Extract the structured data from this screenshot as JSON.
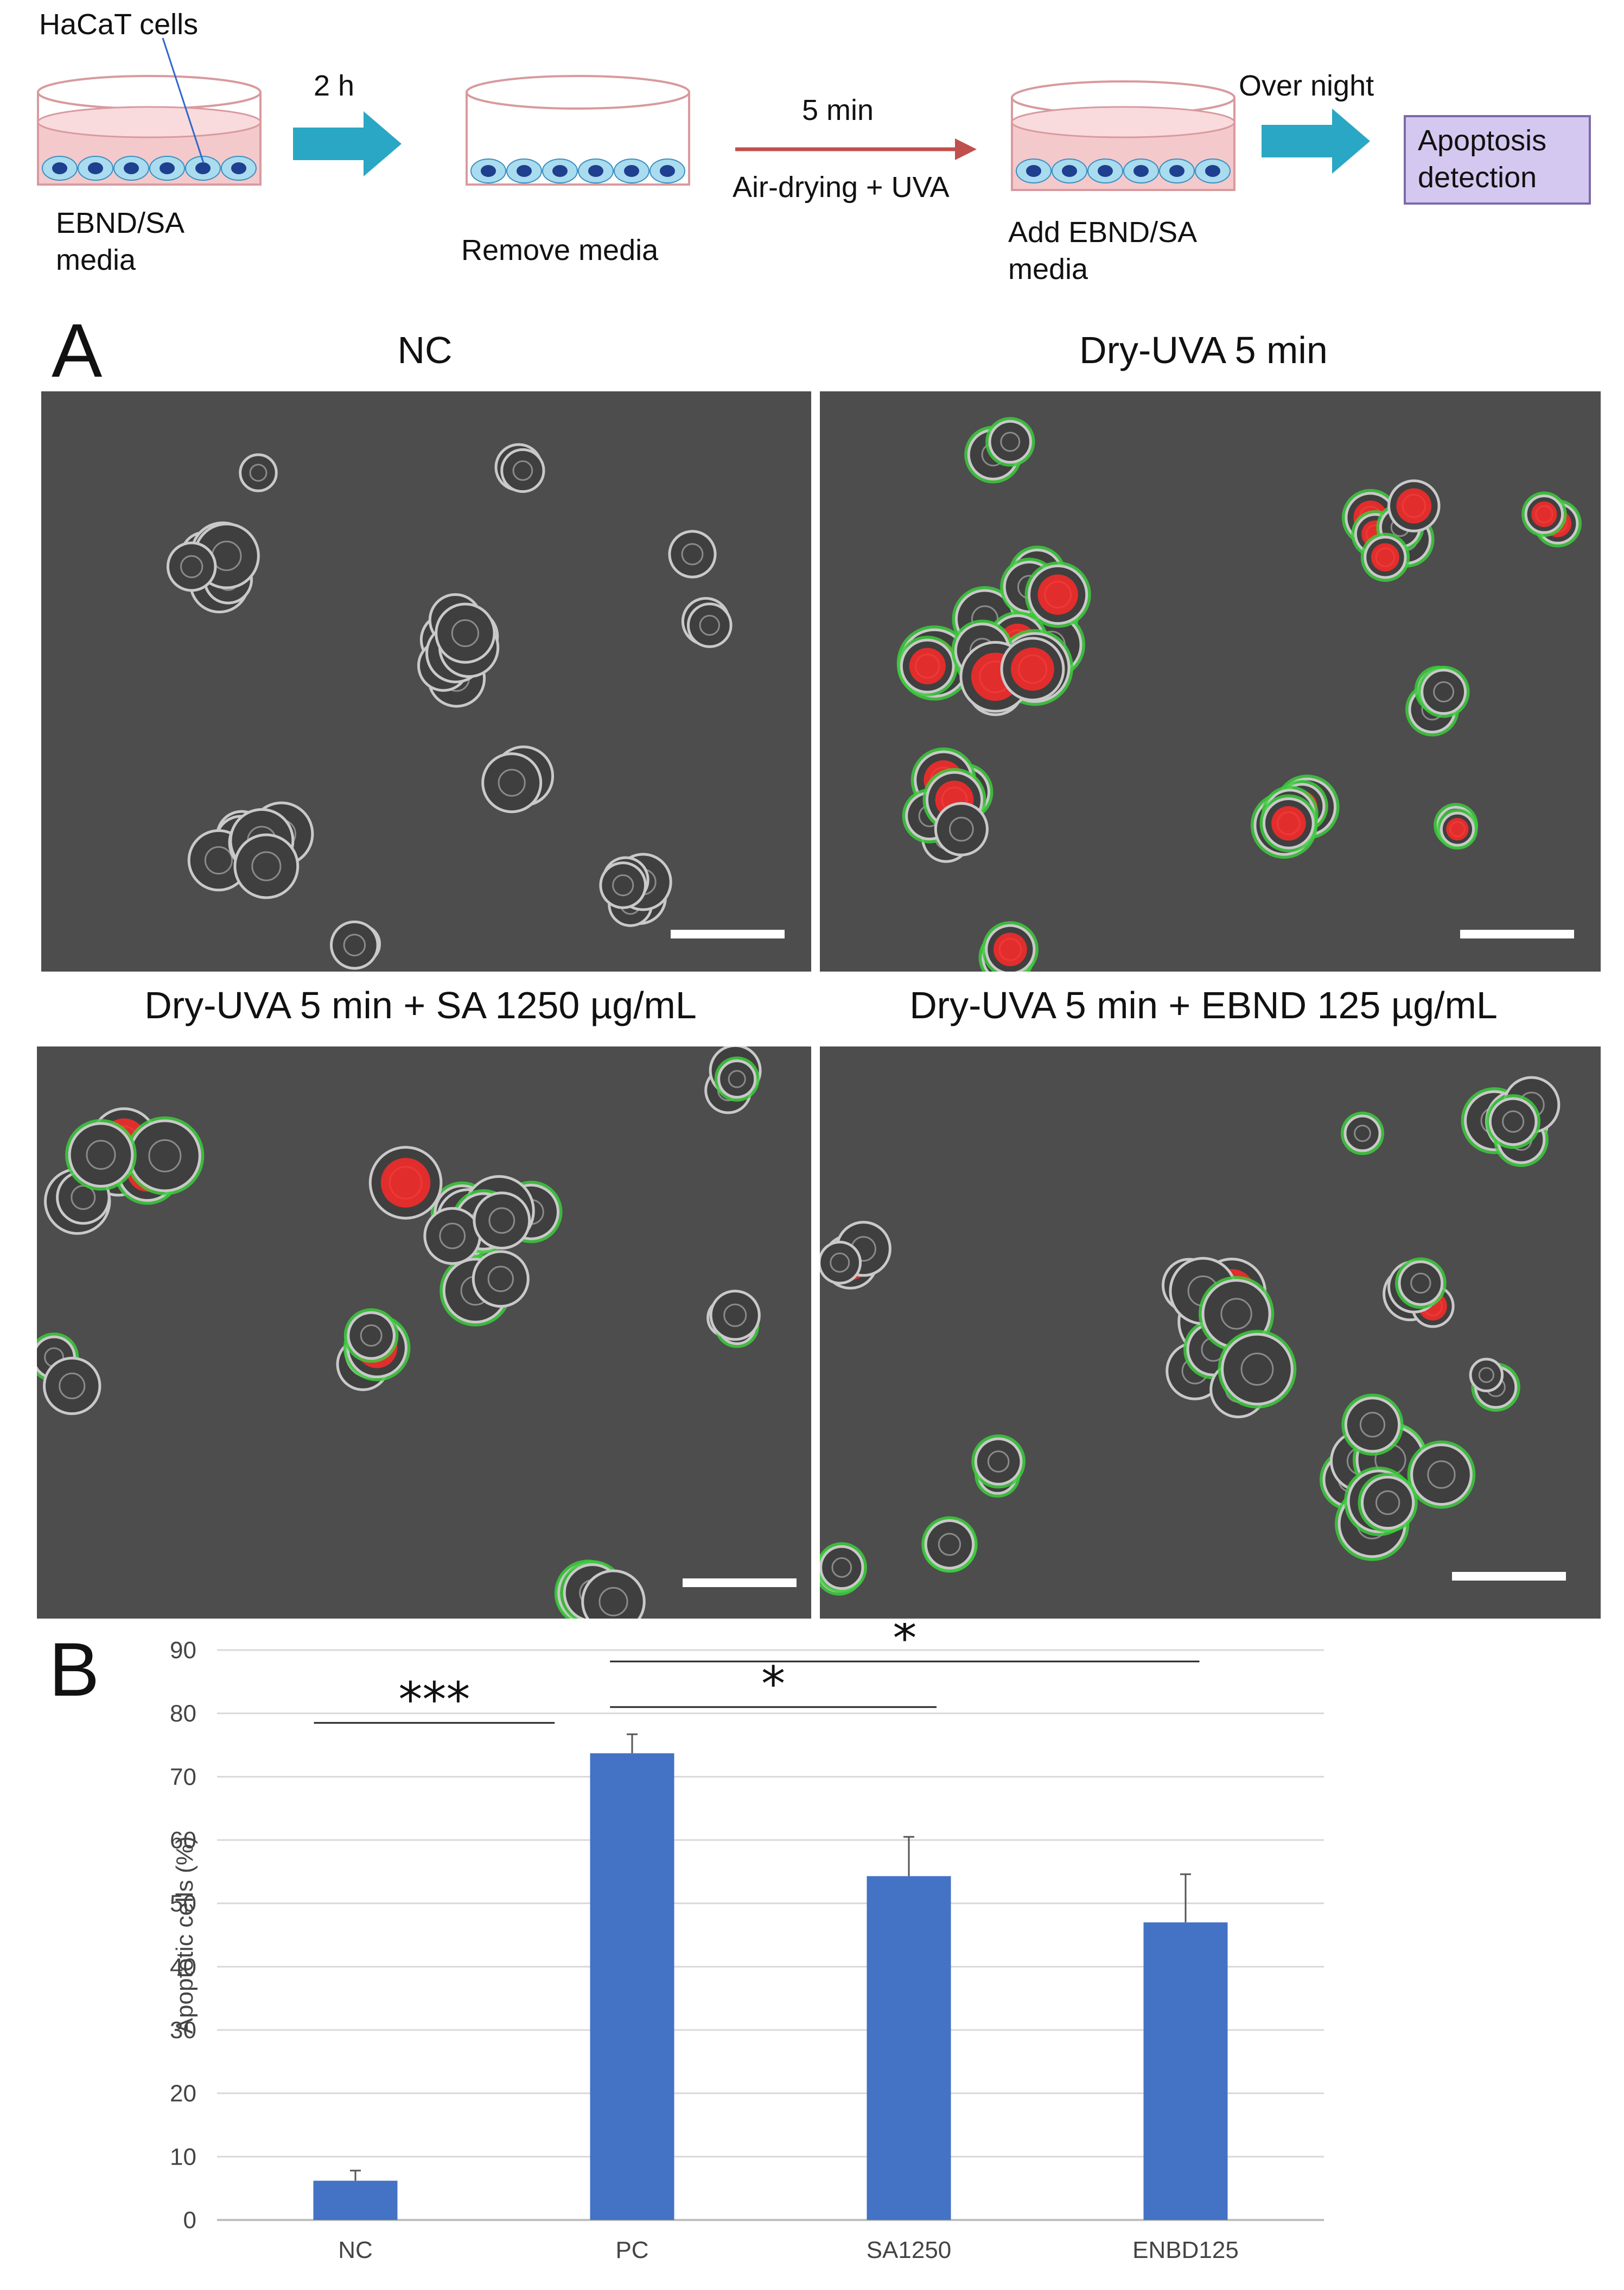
{
  "workflow": {
    "cells_label": "HaCaT cells",
    "media_label": "EBND/SA\nmedia",
    "step1_time": "2 h",
    "remove_label": "Remove media",
    "step2_time": "5 min",
    "step2_treatment": "Air-drying + UVA",
    "add_label": "Add EBND/SA\nmedia",
    "step3_time": "Over night",
    "detection_label": "Apoptosis\ndetection"
  },
  "panel_a": {
    "letter": "A",
    "titles": [
      "NC",
      "Dry-UVA 5 min",
      "Dry-UVA 5 min + SA 1250 µg/mL",
      "Dry-UVA 5 min + EBND 125 µg/mL"
    ]
  },
  "panel_b": {
    "letter": "B",
    "significance": [
      {
        "from": "NC",
        "to": "PC",
        "label": "***"
      },
      {
        "from": "PC",
        "to": "SA1250",
        "label": "*"
      },
      {
        "from": "PC",
        "to": "ENBD125",
        "label": "*"
      }
    ]
  },
  "colors": {
    "bar": "#4472c4",
    "dish_media": "#f4c9cc",
    "cell": "#a9dcef",
    "nucleus": "#1f3f8f",
    "arrow_blue": "#2aa7c4",
    "arrow_red": "#c0504d",
    "stain_green": "#3ccc3c",
    "stain_red": "#ff2a2a"
  },
  "chart_data": {
    "type": "bar",
    "categories": [
      "NC",
      "PC",
      "SA1250",
      "ENBD125"
    ],
    "values": [
      6.2,
      73.7,
      54.3,
      47.0
    ],
    "errors": [
      1.6,
      3.0,
      6.2,
      7.6
    ],
    "ylabel": "Apoptotic cells (%)",
    "ylim": [
      0,
      90
    ],
    "yticks": [
      0,
      10,
      20,
      30,
      40,
      50,
      60,
      70,
      80,
      90
    ],
    "grid": true
  }
}
